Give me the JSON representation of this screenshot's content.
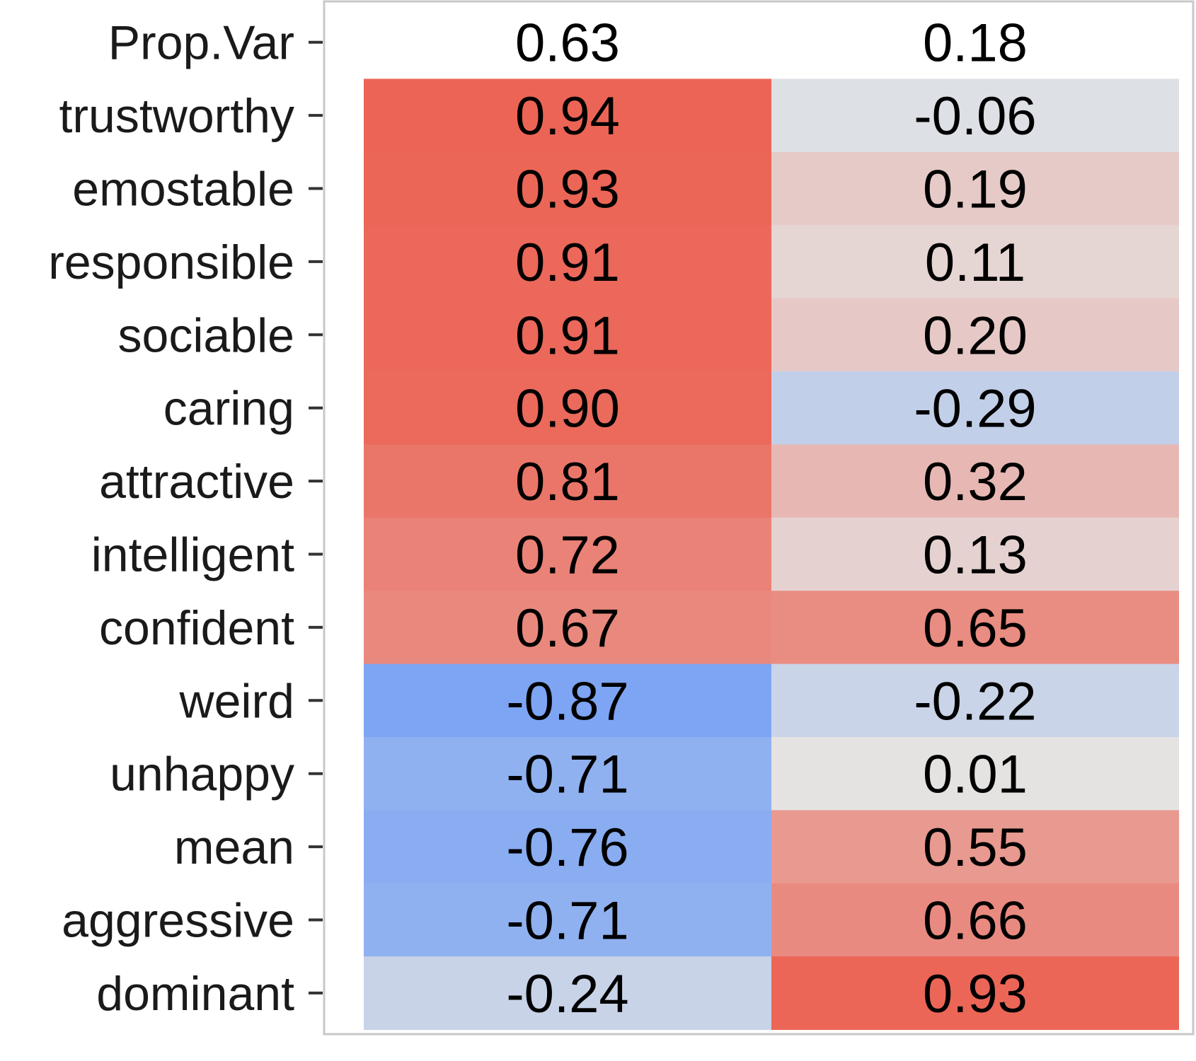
{
  "chart_data": {
    "type": "heatmap",
    "title": "",
    "xlabel": "",
    "ylabel": "",
    "rows": [
      "Prop.Var",
      "trustworthy",
      "emostable",
      "responsible",
      "sociable",
      "caring",
      "attractive",
      "intelligent",
      "confident",
      "weird",
      "unhappy",
      "mean",
      "aggressive",
      "dominant"
    ],
    "columns": [
      "",
      ""
    ],
    "values": [
      [
        0.63,
        0.18
      ],
      [
        0.94,
        -0.06
      ],
      [
        0.93,
        0.19
      ],
      [
        0.91,
        0.11
      ],
      [
        0.91,
        0.2
      ],
      [
        0.9,
        -0.29
      ],
      [
        0.81,
        0.32
      ],
      [
        0.72,
        0.13
      ],
      [
        0.67,
        0.65
      ],
      [
        -0.87,
        -0.22
      ],
      [
        -0.71,
        0.01
      ],
      [
        -0.76,
        0.55
      ],
      [
        -0.71,
        0.66
      ],
      [
        -0.24,
        0.93
      ]
    ],
    "labels": [
      [
        "0.63",
        "0.18"
      ],
      [
        "0.94",
        "-0.06"
      ],
      [
        "0.93",
        "0.19"
      ],
      [
        "0.91",
        "0.11"
      ],
      [
        "0.91",
        "0.20"
      ],
      [
        "0.90",
        "-0.29"
      ],
      [
        "0.81",
        "0.32"
      ],
      [
        "0.72",
        "0.13"
      ],
      [
        "0.67",
        "0.65"
      ],
      [
        "-0.87",
        "-0.22"
      ],
      [
        "-0.71",
        "0.01"
      ],
      [
        "-0.76",
        "0.55"
      ],
      [
        "-0.71",
        "0.66"
      ],
      [
        "-0.24",
        "0.93"
      ]
    ],
    "uncolored_rows": [
      "Prop.Var"
    ],
    "color_scale": {
      "low": "#6e9cf5",
      "mid": "#e4e4e4",
      "high": "#ec5c4c",
      "range": [
        -1,
        1
      ]
    },
    "grid": false,
    "legend": "none"
  }
}
